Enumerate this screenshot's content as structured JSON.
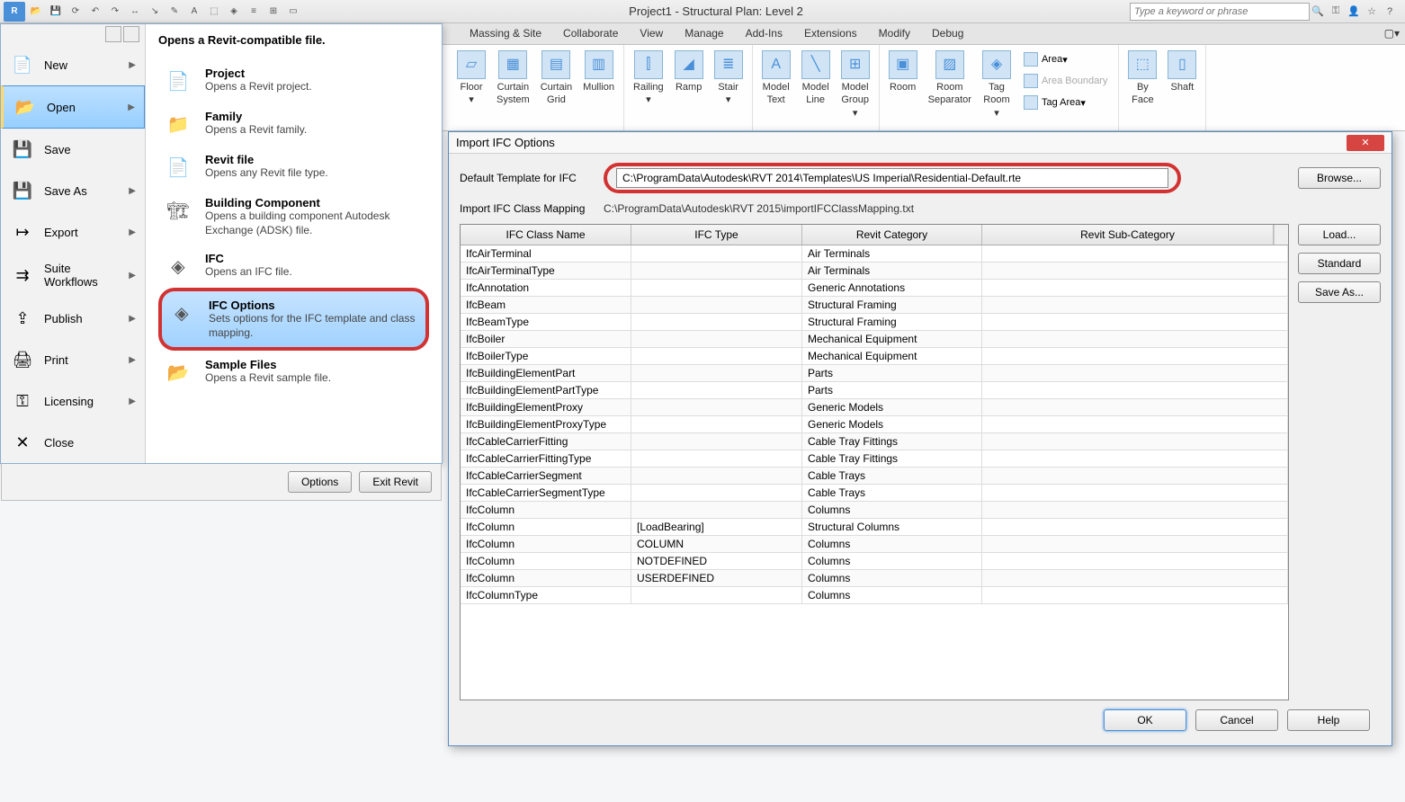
{
  "titlebar": {
    "title": "Project1 - Structural Plan: Level 2",
    "search_placeholder": "Type a keyword or phrase"
  },
  "ribbon_tabs": [
    "Massing & Site",
    "Collaborate",
    "View",
    "Manage",
    "Add-Ins",
    "Extensions",
    "Modify",
    "Debug"
  ],
  "ribbon_buttons": {
    "floor": "Floor",
    "curtain_system": "Curtain\nSystem",
    "curtain_grid": "Curtain\nGrid",
    "mullion": "Mullion",
    "railing": "Railing",
    "ramp": "Ramp",
    "stair": "Stair",
    "model_text": "Model\nText",
    "model_line": "Model\nLine",
    "model_group": "Model\nGroup",
    "room": "Room",
    "room_separator": "Room\nSeparator",
    "tag_room": "Tag\nRoom",
    "area": "Area",
    "area_boundary": "Area Boundary",
    "tag_area": "Tag Area",
    "by_face": "By\nFace",
    "shaft": "Shaft"
  },
  "app_menu": {
    "new": "New",
    "open": "Open",
    "save": "Save",
    "save_as": "Save As",
    "export": "Export",
    "suite_workflows": "Suite\nWorkflows",
    "publish": "Publish",
    "print": "Print",
    "licensing": "Licensing",
    "close": "Close",
    "options_btn": "Options",
    "exit_btn": "Exit Revit"
  },
  "submenu": {
    "header": "Opens a Revit-compatible file.",
    "items": [
      {
        "title": "Project",
        "desc": "Opens a Revit project."
      },
      {
        "title": "Family",
        "desc": "Opens a Revit family."
      },
      {
        "title": "Revit file",
        "desc": "Opens any Revit file type."
      },
      {
        "title": "Building Component",
        "desc": "Opens a building component Autodesk Exchange (ADSK) file."
      },
      {
        "title": "IFC",
        "desc": "Opens an IFC file."
      },
      {
        "title": "IFC Options",
        "desc": "Sets options for the IFC template and class mapping."
      },
      {
        "title": "Sample Files",
        "desc": "Opens a Revit sample file."
      }
    ]
  },
  "dialog": {
    "title": "Import IFC Options",
    "template_label": "Default Template for IFC",
    "template_path": "C:\\ProgramData\\Autodesk\\RVT 2014\\Templates\\US Imperial\\Residential-Default.rte",
    "browse_btn": "Browse...",
    "mapping_label": "Import IFC Class Mapping",
    "mapping_path": "C:\\ProgramData\\Autodesk\\RVT 2015\\importIFCClassMapping.txt",
    "columns": [
      "IFC Class Name",
      "IFC Type",
      "Revit Category",
      "Revit Sub-Category"
    ],
    "rows": [
      [
        "IfcAirTerminal",
        "",
        "Air Terminals",
        ""
      ],
      [
        "IfcAirTerminalType",
        "",
        "Air Terminals",
        ""
      ],
      [
        "IfcAnnotation",
        "",
        "Generic Annotations",
        ""
      ],
      [
        "IfcBeam",
        "",
        "Structural Framing",
        ""
      ],
      [
        "IfcBeamType",
        "",
        "Structural Framing",
        ""
      ],
      [
        "IfcBoiler",
        "",
        "Mechanical Equipment",
        ""
      ],
      [
        "IfcBoilerType",
        "",
        "Mechanical Equipment",
        ""
      ],
      [
        "IfcBuildingElementPart",
        "",
        "Parts",
        ""
      ],
      [
        "IfcBuildingElementPartType",
        "",
        "Parts",
        ""
      ],
      [
        "IfcBuildingElementProxy",
        "",
        "Generic Models",
        ""
      ],
      [
        "IfcBuildingElementProxyType",
        "",
        "Generic Models",
        ""
      ],
      [
        "IfcCableCarrierFitting",
        "",
        "Cable Tray Fittings",
        ""
      ],
      [
        "IfcCableCarrierFittingType",
        "",
        "Cable Tray Fittings",
        ""
      ],
      [
        "IfcCableCarrierSegment",
        "",
        "Cable Trays",
        ""
      ],
      [
        "IfcCableCarrierSegmentType",
        "",
        "Cable Trays",
        ""
      ],
      [
        "IfcColumn",
        "",
        "Columns",
        ""
      ],
      [
        "IfcColumn",
        "[LoadBearing]",
        "Structural Columns",
        ""
      ],
      [
        "IfcColumn",
        "COLUMN",
        "Columns",
        ""
      ],
      [
        "IfcColumn",
        "NOTDEFINED",
        "Columns",
        ""
      ],
      [
        "IfcColumn",
        "USERDEFINED",
        "Columns",
        ""
      ],
      [
        "IfcColumnType",
        "",
        "Columns",
        ""
      ]
    ],
    "load_btn": "Load...",
    "standard_btn": "Standard",
    "saveas_btn": "Save As...",
    "ok_btn": "OK",
    "cancel_btn": "Cancel",
    "help_btn": "Help"
  }
}
